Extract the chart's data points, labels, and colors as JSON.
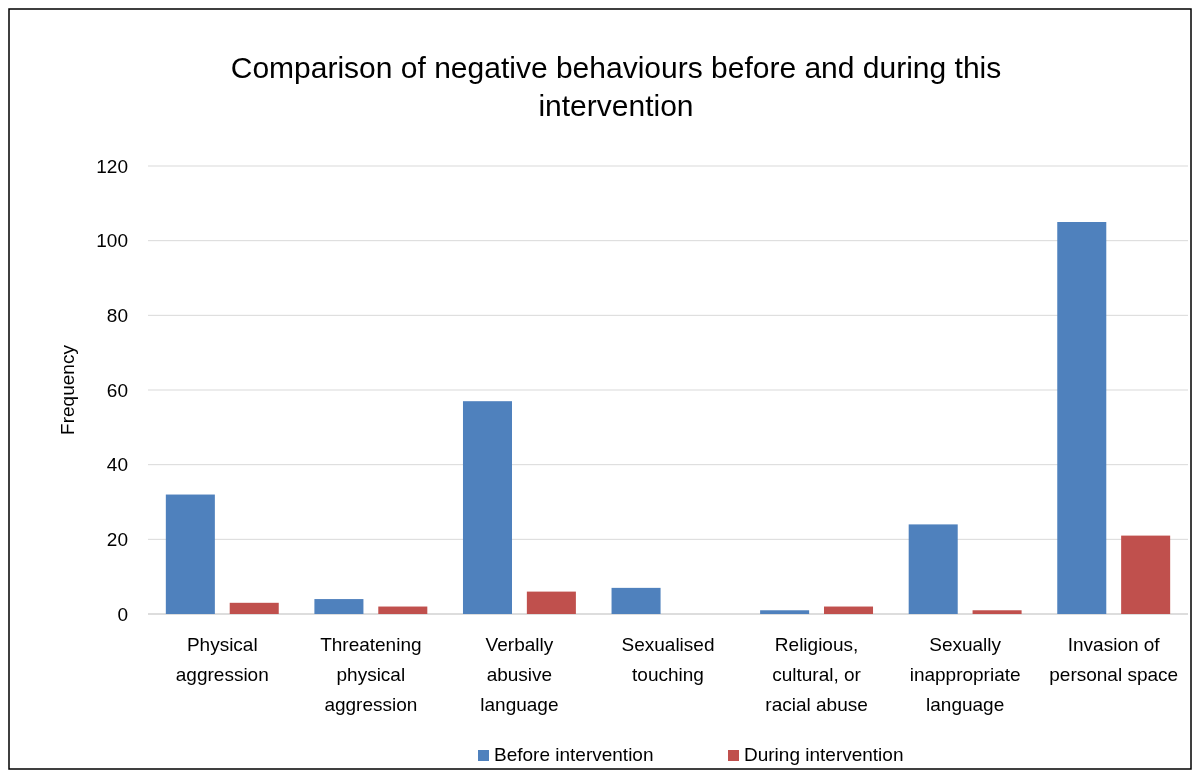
{
  "chart_data": {
    "type": "bar",
    "title": "Comparison of negative behaviours before and during this intervention",
    "ylabel": "Frequency",
    "categories": [
      "Physical aggression",
      "Threatening physical aggression",
      "Verbally abusive language",
      "Sexualised touching",
      "Religious, cultural, or racial abuse",
      "Sexually inappropriate language",
      "Invasion of personal space"
    ],
    "series": [
      {
        "name": "Before intervention",
        "color": "#4f81bd",
        "values": [
          32,
          4,
          57,
          7,
          1,
          24,
          105
        ]
      },
      {
        "name": "During intervention",
        "color": "#c0504d",
        "values": [
          3,
          2,
          6,
          0,
          2,
          1,
          21
        ]
      }
    ],
    "ylim": [
      0,
      120
    ],
    "yticks": [
      0,
      20,
      40,
      60,
      80,
      100,
      120
    ],
    "grid": "y",
    "legend": "bottom"
  }
}
